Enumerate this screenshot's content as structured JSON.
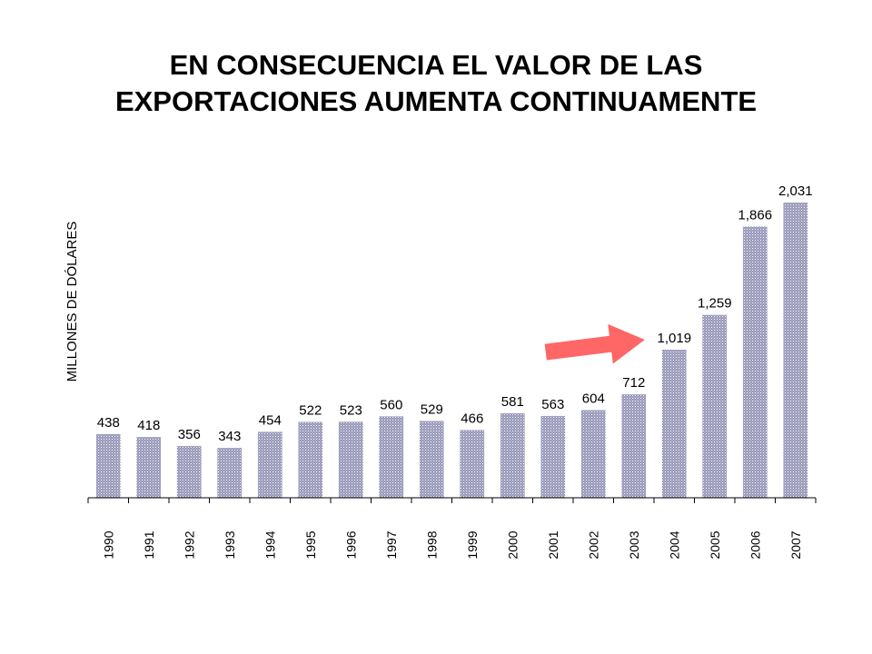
{
  "slide": {
    "title_line1": "EN CONSECUENCIA EL VALOR DE LAS",
    "title_line2": "EXPORTACIONES AUMENTA CONTINUAMENTE"
  },
  "colors": {
    "bar_fill": "#9696b8",
    "bar_stripe": "#ffffff",
    "arrow": "#ff6666",
    "axis": "#000000"
  },
  "chart_data": {
    "type": "bar",
    "title": "",
    "xlabel": "",
    "ylabel": "MILLONES DE DÓLARES",
    "categories": [
      "1990",
      "1991",
      "1992",
      "1993",
      "1994",
      "1995",
      "1996",
      "1997",
      "1998",
      "1999",
      "2000",
      "2001",
      "2002",
      "2003",
      "2004",
      "2005",
      "2006",
      "2007"
    ],
    "values": [
      438,
      418,
      356,
      343,
      454,
      522,
      523,
      560,
      529,
      466,
      581,
      563,
      604,
      712,
      1019,
      1259,
      1866,
      2031
    ],
    "value_labels": [
      "438",
      "418",
      "356",
      "343",
      "454",
      "522",
      "523",
      "560",
      "529",
      "466",
      "581",
      "563",
      "604",
      "712",
      "1,019",
      "1,259",
      "1,866",
      "2,031"
    ],
    "ylim": [
      0,
      2200
    ],
    "grid": false,
    "legend": "none",
    "annotations": [
      {
        "type": "arrow",
        "from_category": "2001",
        "from_value": 640,
        "to_category": "2003",
        "to_value": 1200
      }
    ]
  }
}
